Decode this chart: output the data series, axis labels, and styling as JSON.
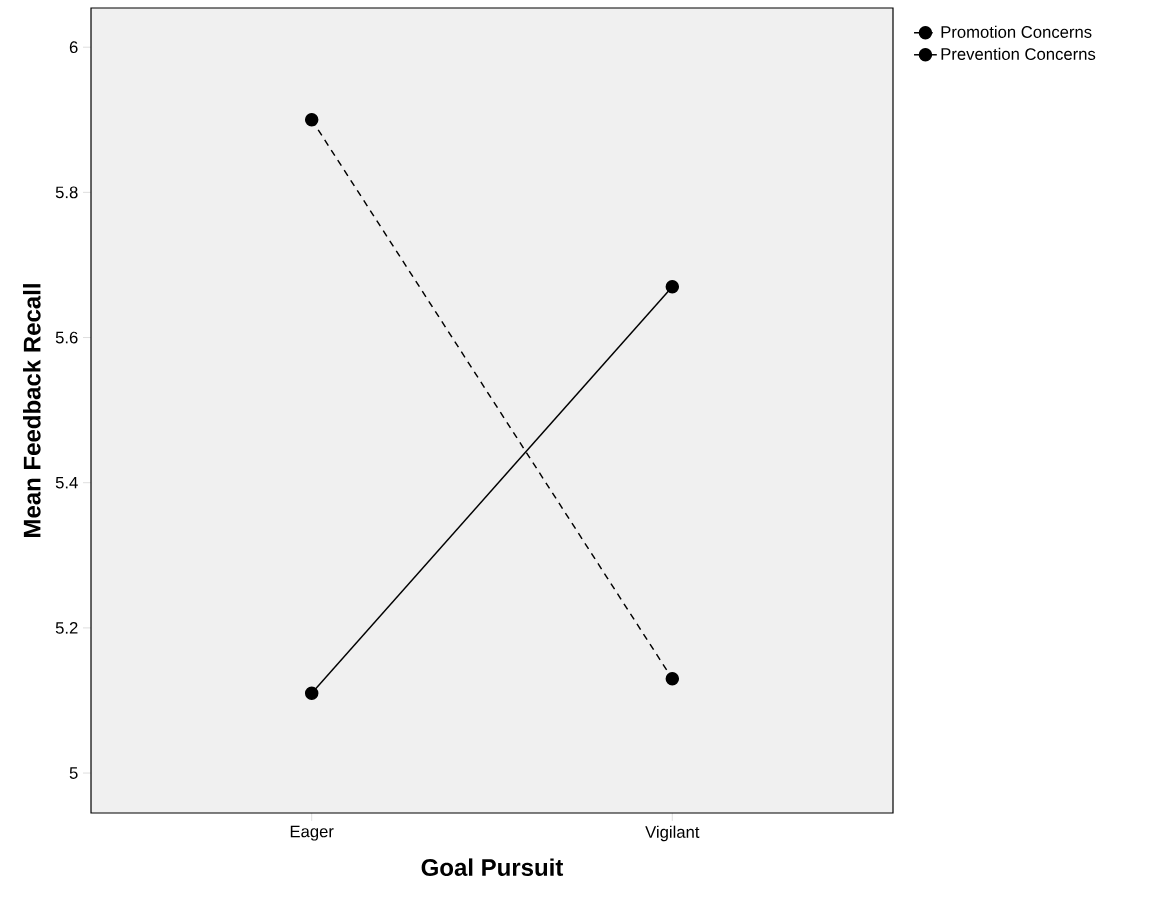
{
  "chart_data": {
    "type": "line",
    "xlabel": "Goal Pursuit",
    "ylabel": "Mean Feedback Recall",
    "categories": [
      "Eager",
      "Vigilant"
    ],
    "series": [
      {
        "name": "Promotion Concerns",
        "color": "#000000",
        "line_style": "dashed",
        "values": [
          5.9,
          5.13
        ]
      },
      {
        "name": "Prevention Concerns",
        "color": "#000000",
        "line_style": "solid",
        "values": [
          5.11,
          5.67
        ]
      }
    ],
    "ylim": [
      4.945,
      6.054
    ],
    "yticks": [
      5,
      5.2,
      5.4,
      5.6,
      5.8,
      6
    ],
    "marker": "circle",
    "grid": false,
    "legend": "top right"
  }
}
